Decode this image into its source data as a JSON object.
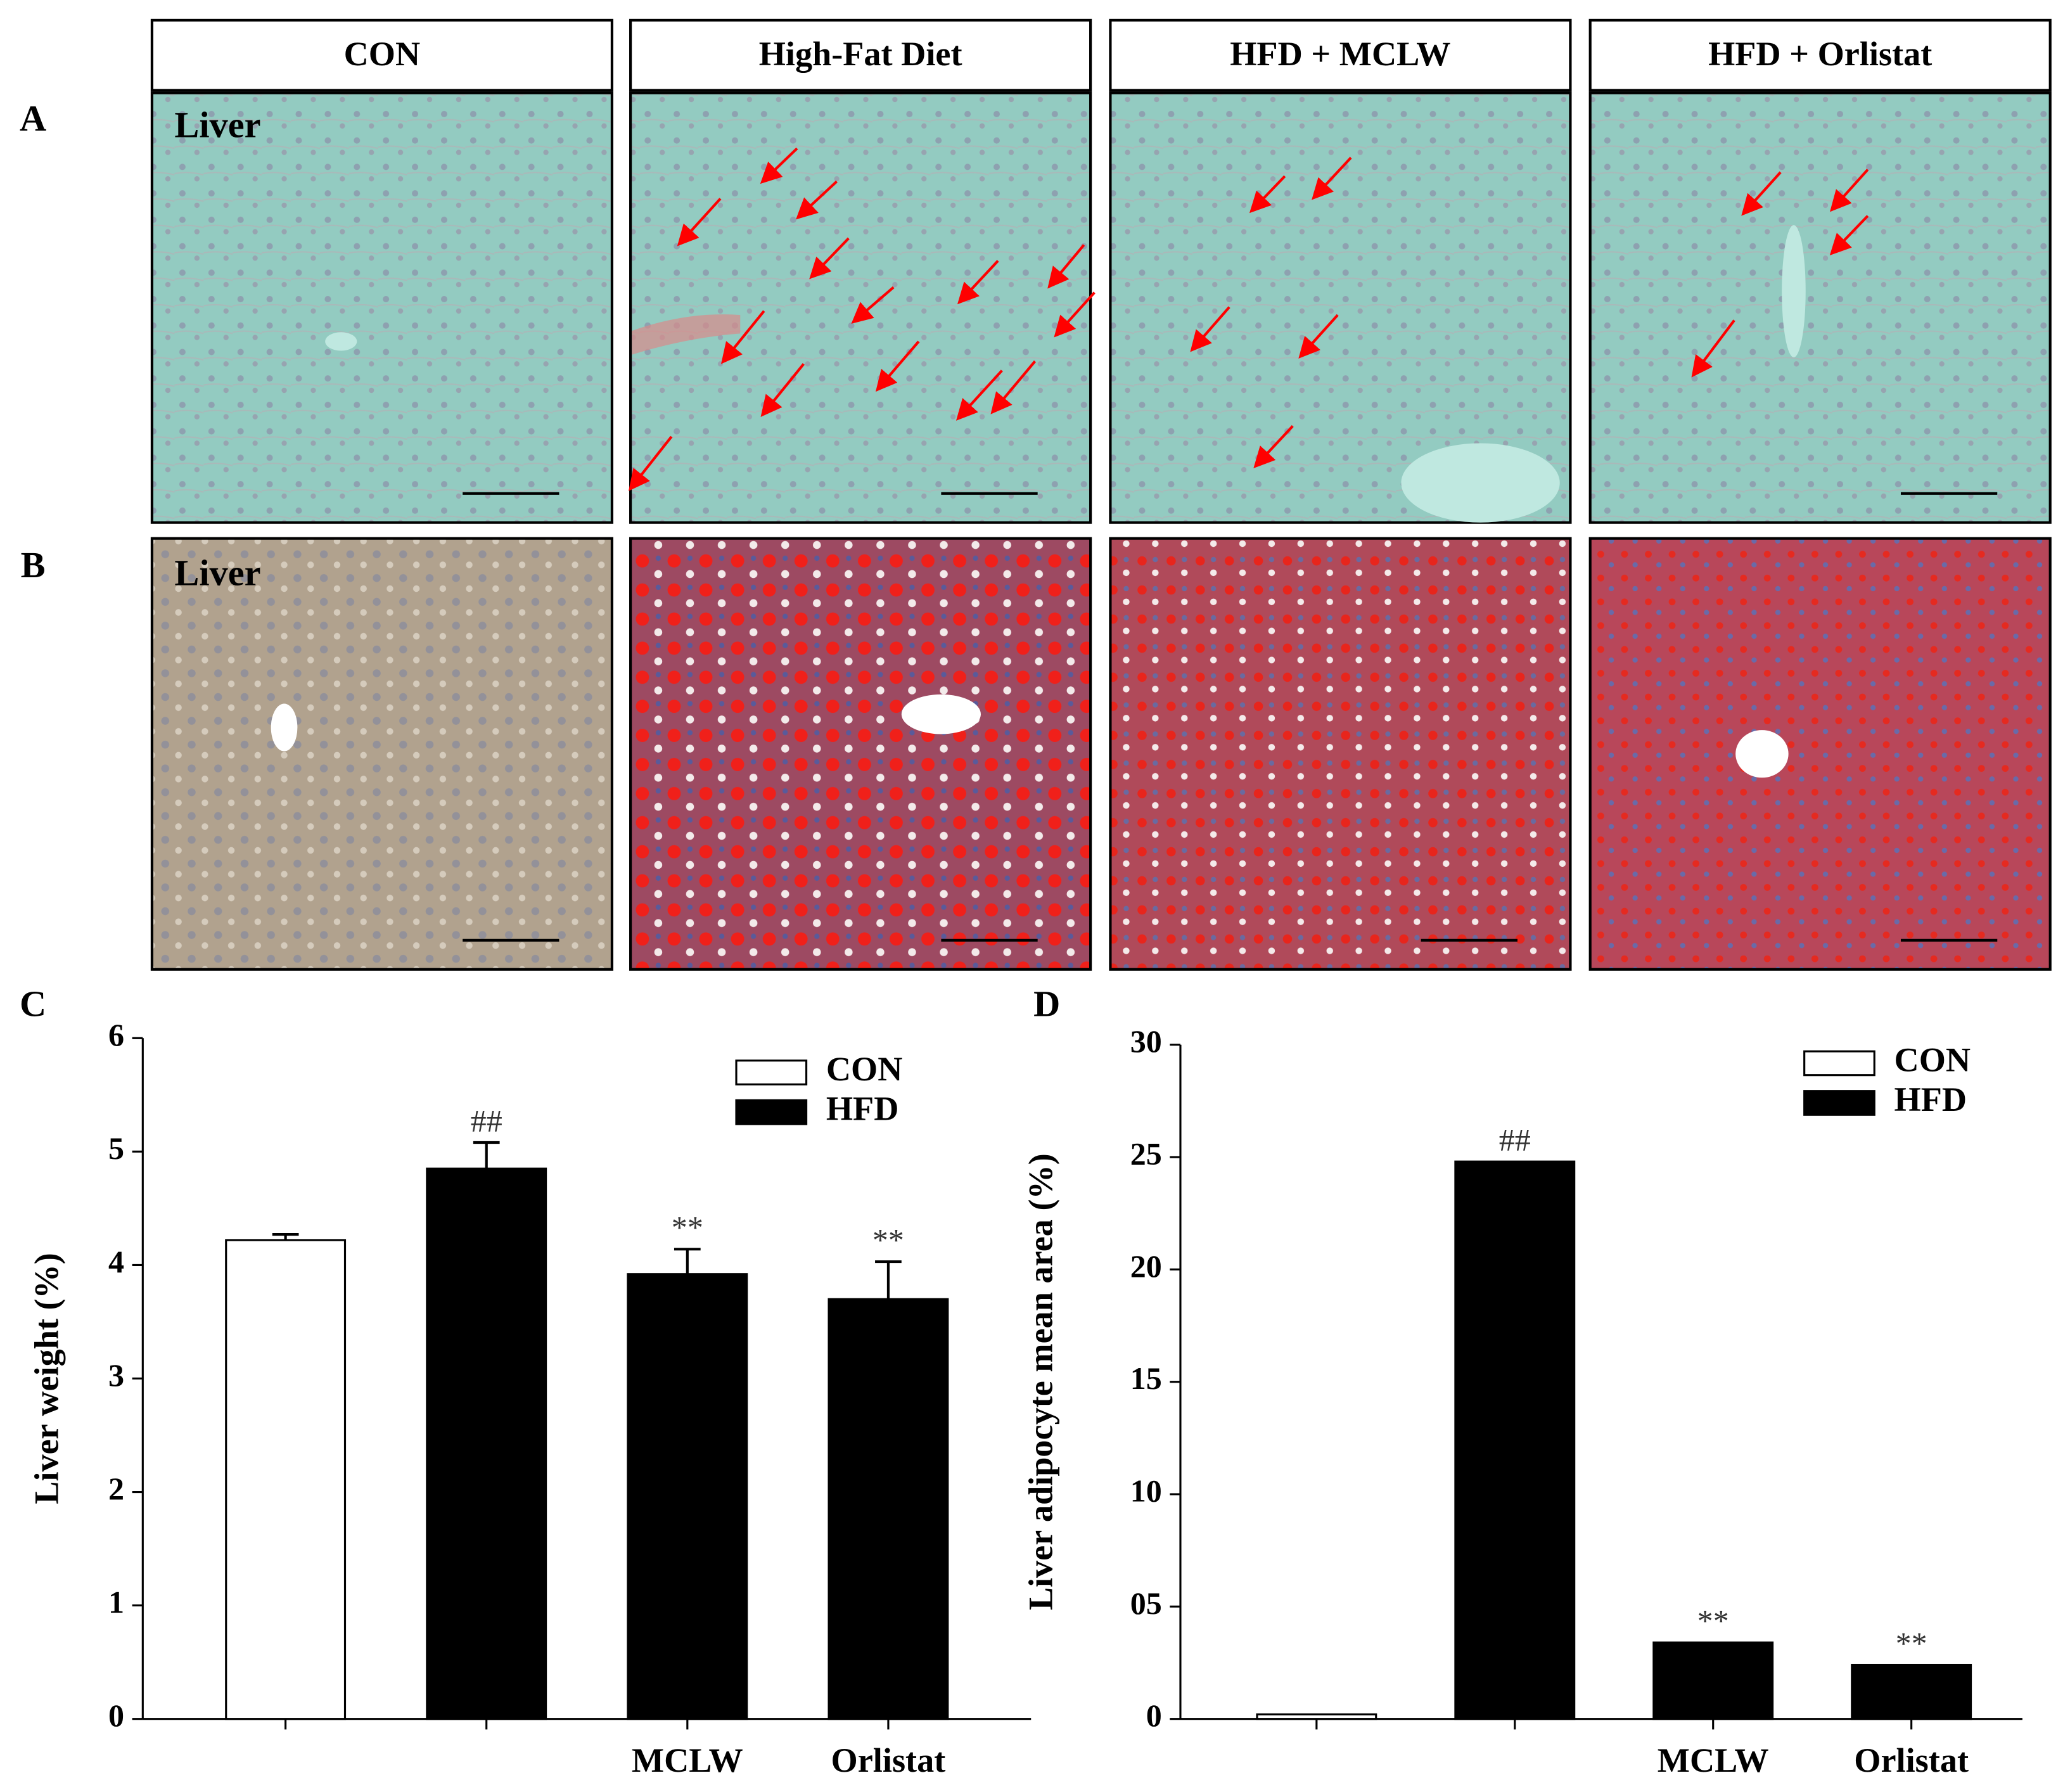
{
  "panels": {
    "headers": [
      "CON",
      "High-Fat Diet",
      "HFD + MCLW",
      "HFD + Orlistat"
    ],
    "row_labels": [
      "A",
      "B"
    ],
    "tissue_labels": [
      "Liver",
      "Liver"
    ],
    "chart_labels": [
      "C",
      "D"
    ]
  },
  "chart_data": [
    {
      "type": "bar",
      "ylabel": "Liver weight (%)",
      "categories": [
        null,
        null,
        "MCLW",
        "Orlistat"
      ],
      "series": [
        {
          "name": "CON",
          "color": "#ffffff",
          "values": [
            4.22,
            null,
            null,
            null
          ],
          "errors": [
            0.05,
            null,
            null,
            null
          ]
        },
        {
          "name": "HFD",
          "color": "#000000",
          "values": [
            null,
            4.85,
            3.92,
            3.7
          ],
          "errors": [
            null,
            0.23,
            0.22,
            0.33
          ]
        }
      ],
      "significance": [
        null,
        "##",
        "**",
        "**"
      ],
      "ylim": [
        0,
        6
      ],
      "yticks": [
        0,
        1,
        2,
        3,
        4,
        5,
        6
      ],
      "legend": "upper right"
    },
    {
      "type": "bar",
      "ylabel": "Liver adipocyte mean area (%)",
      "categories": [
        null,
        null,
        "MCLW",
        "Orlistat"
      ],
      "series": [
        {
          "name": "CON",
          "color": "#ffffff",
          "values": [
            0.2,
            null,
            null,
            null
          ]
        },
        {
          "name": "HFD",
          "color": "#000000",
          "values": [
            null,
            24.8,
            3.4,
            2.4
          ]
        }
      ],
      "significance": [
        null,
        "##",
        "**",
        "**"
      ],
      "ylim": [
        0,
        30
      ],
      "yticks": [
        0,
        {
          "value": 5,
          "label": "05"
        },
        10,
        15,
        20,
        25,
        30
      ],
      "legend": "upper right"
    }
  ]
}
